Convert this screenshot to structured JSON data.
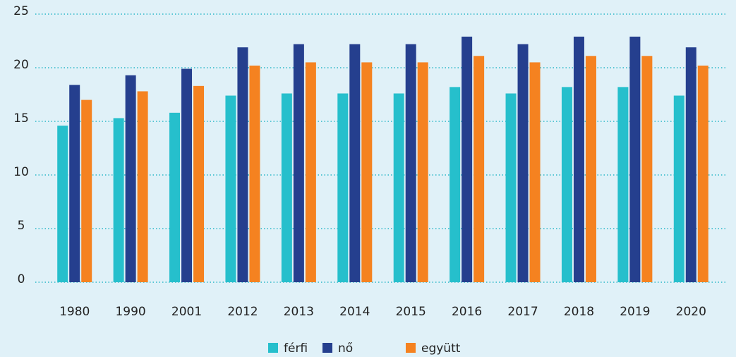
{
  "chart_data": {
    "type": "bar",
    "categories": [
      "1980",
      "1990",
      "2001",
      "2012",
      "2013",
      "2014",
      "2015",
      "2016",
      "2017",
      "2018",
      "2019",
      "2020"
    ],
    "series": [
      {
        "name": "férfi",
        "color": "#26bfcc",
        "values": [
          14.6,
          15.3,
          15.8,
          17.4,
          17.6,
          17.6,
          17.6,
          18.2,
          17.6,
          18.2,
          18.2,
          17.4
        ]
      },
      {
        "name": "nő",
        "color": "#253f8e",
        "values": [
          18.4,
          19.3,
          19.9,
          21.9,
          22.2,
          22.2,
          22.2,
          22.9,
          22.2,
          22.9,
          22.9,
          21.9
        ]
      },
      {
        "name": "együtt",
        "color": "#f58220",
        "values": [
          17.0,
          17.8,
          18.3,
          20.2,
          20.5,
          20.5,
          20.5,
          21.1,
          20.5,
          21.1,
          21.1,
          20.2
        ]
      }
    ],
    "ylim": [
      0,
      25
    ],
    "yticks": [
      0,
      5,
      10,
      15,
      20,
      25
    ],
    "grid": true,
    "legend": "bottom"
  }
}
